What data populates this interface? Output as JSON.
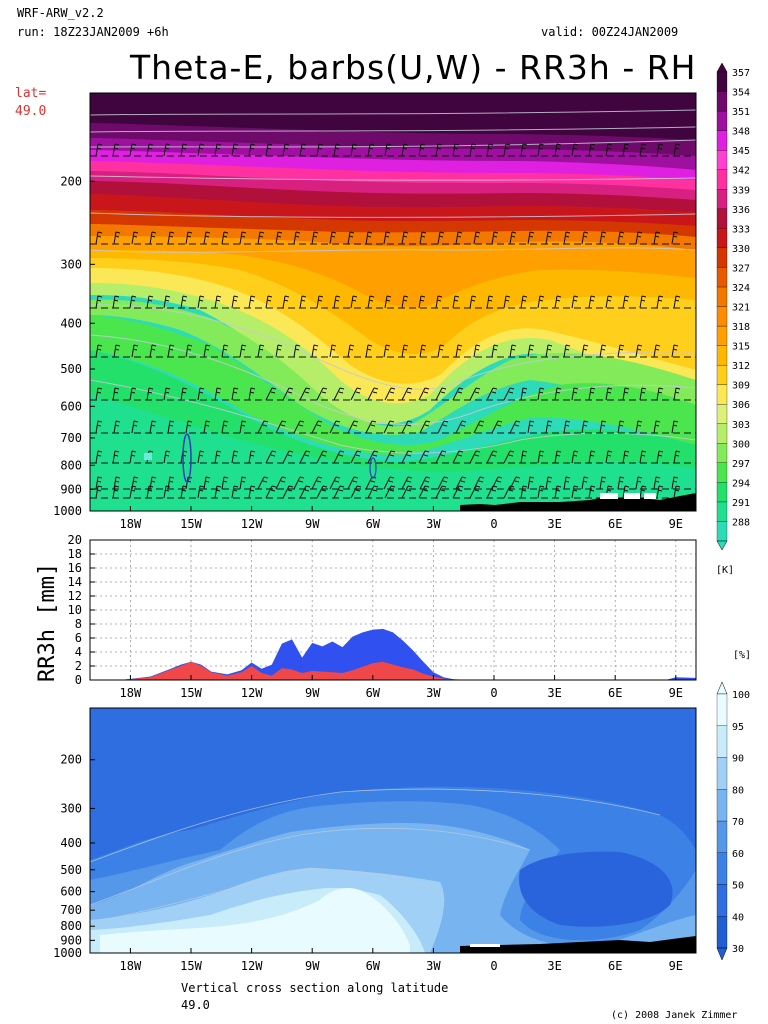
{
  "header": {
    "model": "WRF-ARW_v2.2",
    "run": "run: 18Z23JAN2009 +6h",
    "valid": "valid: 00Z24JAN2009",
    "title": "Theta-E, barbs(U,W) - RR3h - RH",
    "lat_label": "lat=",
    "lat_value": "49.0"
  },
  "footer": {
    "caption": "Vertical cross section along latitude",
    "caption_value": "49.0",
    "credit": "(c) 2008 Janek Zimmer"
  },
  "chart_data": [
    {
      "type": "heatmap",
      "name": "Theta-E cross section",
      "title": "Theta-E, barbs(U,W)",
      "xlabel": "",
      "ylabel": "",
      "x_ticks": [
        "18W",
        "15W",
        "12W",
        "9W",
        "6W",
        "3W",
        "0",
        "3E",
        "6E",
        "9E"
      ],
      "x_range": [
        -20,
        10
      ],
      "y_ticks": [
        200,
        300,
        400,
        500,
        600,
        700,
        800,
        900,
        1000
      ],
      "y_range_hPa": [
        130,
        1000
      ],
      "colorbar": {
        "unit": "[K]",
        "levels": [
          288,
          291,
          294,
          297,
          300,
          303,
          306,
          309,
          312,
          315,
          318,
          321,
          324,
          327,
          330,
          333,
          336,
          339,
          342,
          345,
          348,
          351,
          354,
          357
        ],
        "colors": [
          "#2edbb8",
          "#1ee08e",
          "#22e06a",
          "#4be64e",
          "#83ea5a",
          "#b6ee6a",
          "#dcf07a",
          "#fbe857",
          "#ffcf1c",
          "#ffb800",
          "#ff9f00",
          "#ff8c00",
          "#f27800",
          "#e85a00",
          "#d43800",
          "#c8161a",
          "#b0103a",
          "#d82080",
          "#ff30a0",
          "#ff40d0",
          "#e020e0",
          "#a010a0",
          "#6e0a6a",
          "#40053e"
        ]
      }
    },
    {
      "type": "area",
      "name": "RR3h precipitation",
      "title": "",
      "ylabel": "RR3h [mm]",
      "xlabel": "",
      "x_ticks": [
        "18W",
        "15W",
        "12W",
        "9W",
        "6W",
        "3W",
        "0",
        "3E",
        "6E",
        "9E"
      ],
      "y_ticks": [
        0,
        2,
        4,
        6,
        8,
        10,
        12,
        14,
        16,
        18,
        20
      ],
      "ylim": [
        0,
        20
      ],
      "grid": true,
      "x": [
        -20,
        -18.5,
        -17,
        -16,
        -15.5,
        -15,
        -14.5,
        -14,
        -13.2,
        -12.5,
        -12,
        -11.5,
        -11,
        -10.5,
        -10,
        -9.5,
        -9,
        -8.5,
        -8,
        -7.5,
        -7,
        -6.5,
        -6,
        -5.5,
        -5,
        -4.5,
        -4,
        -3.5,
        -3,
        -2.5,
        -2,
        -1,
        0,
        3,
        6,
        8.5,
        9,
        10
      ],
      "series": [
        {
          "color": "#3050f0",
          "values": [
            0,
            0,
            0.5,
            1.6,
            2.2,
            2.6,
            2.2,
            1.2,
            0.8,
            1.4,
            2.5,
            1.6,
            2.2,
            5.2,
            5.8,
            3.2,
            5.3,
            4.8,
            5.5,
            4.7,
            6.2,
            6.8,
            7.2,
            7.3,
            6.8,
            5.6,
            4.2,
            2.6,
            1.1,
            0.4,
            0.1,
            0,
            0,
            0,
            0,
            0,
            0.4,
            0.3
          ]
        },
        {
          "color": "#f04848",
          "values": [
            0,
            0,
            0.4,
            1.5,
            2.0,
            2.6,
            2.0,
            1.1,
            0.6,
            1.1,
            2.0,
            1.0,
            0.6,
            1.7,
            1.5,
            1.0,
            1.3,
            1.2,
            1.1,
            1.0,
            1.4,
            1.9,
            2.4,
            2.6,
            2.2,
            1.8,
            1.5,
            0.9,
            0.5,
            0.2,
            0.05,
            0,
            0,
            0,
            0,
            0,
            0,
            0
          ]
        }
      ]
    },
    {
      "type": "heatmap",
      "name": "Relative humidity cross section",
      "title": "",
      "xlabel": "",
      "x_ticks": [
        "18W",
        "15W",
        "12W",
        "9W",
        "6W",
        "3W",
        "0",
        "3E",
        "6E",
        "9E"
      ],
      "y_ticks": [
        200,
        300,
        400,
        500,
        600,
        700,
        800,
        900,
        1000
      ],
      "colorbar": {
        "unit": "[%]",
        "levels": [
          30,
          40,
          50,
          60,
          70,
          80,
          90,
          95,
          100
        ],
        "colors": [
          "#1e5fd4",
          "#2e6ee0",
          "#3c82e6",
          "#5598ea",
          "#78b4f0",
          "#a0d0f5",
          "#c8ecfa",
          "#e8fbff"
        ]
      }
    }
  ]
}
